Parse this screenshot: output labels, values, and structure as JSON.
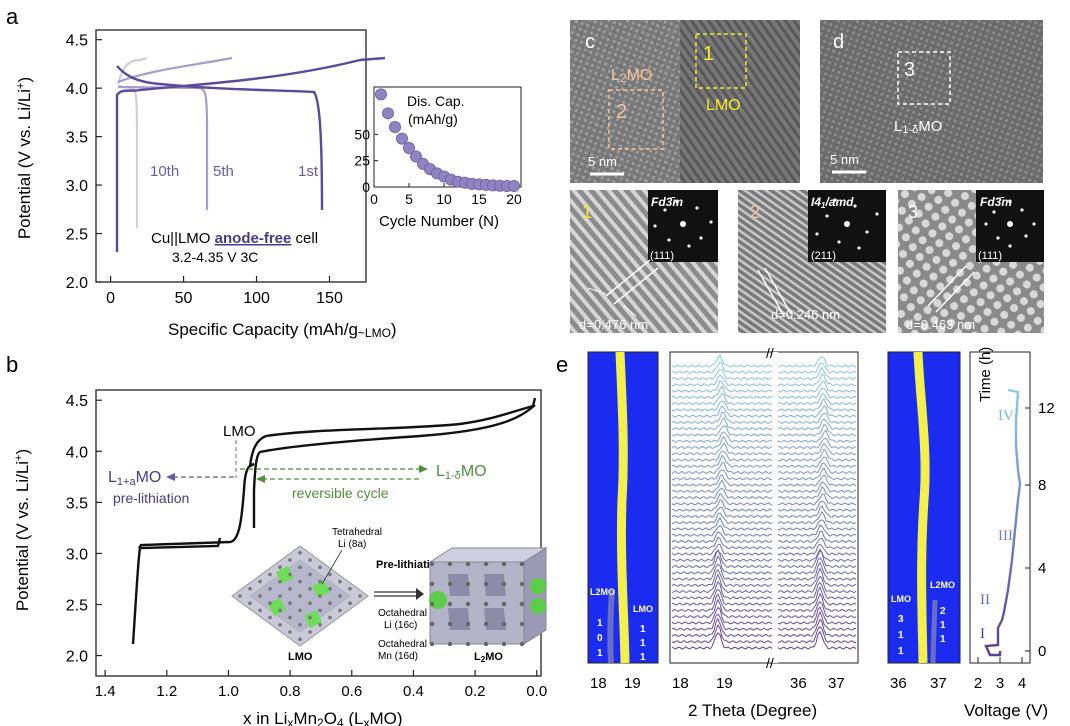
{
  "panel_labels": {
    "a": "a",
    "b": "b",
    "c": "c",
    "d": "d",
    "e": "e"
  },
  "chart_data": [
    {
      "id": "a",
      "type": "line",
      "xlabel_main": "Specific Capacity (mAh/g",
      "xlabel_sub": "~LMO",
      "xlabel_end": ")",
      "ylabel": "Potential (V vs. Li/Li",
      "ylabel_sup": "+",
      "ylabel_end": ")",
      "xlim": [
        -10,
        175
      ],
      "ylim": [
        2.0,
        4.6
      ],
      "xticks": [
        "0",
        "50",
        "100",
        "150"
      ],
      "yticks": [
        "2.0",
        "2.5",
        "3.0",
        "3.5",
        "4.0",
        "4.5"
      ],
      "curve_labels": [
        "10th",
        "5th",
        "1st"
      ],
      "annotation_cell": "Cu||LMO",
      "annotation_bold": "anode-free",
      "annotation_tail": "cell",
      "annotation_line2": "3.2-4.35 V   3C",
      "inset": {
        "type": "scatter",
        "title_line1": "Dis. Cap.",
        "title_line2": "(mAh/g)",
        "xlabel": "Cycle Number (N)",
        "xlim": [
          0,
          21
        ],
        "ylim": [
          0,
          95
        ],
        "xticks": [
          "0",
          "5",
          "10",
          "15",
          "20"
        ],
        "yticks": [
          "0",
          "25",
          "50"
        ],
        "x": [
          1,
          2,
          3,
          4,
          5,
          6,
          7,
          8,
          9,
          10,
          11,
          12,
          13,
          14,
          15,
          16,
          17,
          18,
          19,
          20
        ],
        "y": [
          88,
          70,
          57,
          46,
          37,
          29,
          22,
          17,
          13,
          10,
          7,
          5,
          4,
          3,
          2.5,
          2,
          1.5,
          1.2,
          1,
          1
        ]
      }
    },
    {
      "id": "b",
      "type": "line",
      "xlabel_main": "x in Li",
      "xlabel_formula": "xMn2O4 (LxMO)",
      "ylabel": "Potential (V vs. Li/Li",
      "ylabel_sup": "+",
      "ylabel_end": ")",
      "xlim": [
        1.4,
        0.0
      ],
      "ylim": [
        1.8,
        4.6
      ],
      "xticks": [
        "1.4",
        "1.2",
        "1.0",
        "0.8",
        "0.6",
        "0.4",
        "0.2",
        "0.0"
      ],
      "yticks": [
        "2.0",
        "2.5",
        "3.0",
        "3.5",
        "4.0",
        "4.5"
      ],
      "lmo_label": "LMO",
      "left_label_main": "L",
      "left_label_sub": "1+a",
      "left_label_tail": "MO",
      "left_caption": "pre-lithiation",
      "right_label_main": "L",
      "right_label_sub": "1-δ",
      "right_label_tail": "MO",
      "right_caption": "reversible cycle",
      "structure": {
        "tetra": "Tetrahedral",
        "tetra_site": "Li (8a)",
        "octa_li": "Octahedral",
        "octa_li_site": "Li (16c)",
        "octa_mn": "Octahedral",
        "octa_mn_site": "Mn (16d)",
        "arrow_label": "Pre-lithiation",
        "left_name": "LMO",
        "right_name": "L2MO"
      }
    },
    {
      "id": "e",
      "type": "heatmap",
      "xlabel": "2 Theta (Degree)",
      "left_ticks": [
        "18",
        "19"
      ],
      "mid_ticks_left": [
        "18",
        "19"
      ],
      "mid_ticks_right": [
        "36",
        "37"
      ],
      "right_ticks": [
        "36",
        "37"
      ],
      "left_peak_labels": {
        "l2mo": "L2MO",
        "l2mo_idx": [
          "1",
          "0",
          "1"
        ],
        "lmo": "LMO",
        "lmo_idx": [
          "1",
          "1",
          "1"
        ]
      },
      "right_peak_labels": {
        "lmo": "LMO",
        "lmo_idx": [
          "3",
          "1",
          "1"
        ],
        "l2mo": "L2MO",
        "l2mo_idx": [
          "2",
          "1",
          "1"
        ]
      },
      "voltage": {
        "xlabel": "Voltage (V)",
        "ylabel": "Time (h)",
        "xticks": [
          "2",
          "3",
          "4"
        ],
        "yticks": [
          "0",
          "4",
          "8",
          "12"
        ],
        "stages": [
          "I",
          "II",
          "III",
          "IV"
        ]
      }
    }
  ],
  "tem": {
    "c": {
      "l2mo": "L2MO",
      "box1": "1",
      "box2": "2",
      "lmo": "LMO",
      "scale": "5 nm"
    },
    "d": {
      "box3": "3",
      "phase": "L1-δMO",
      "scale": "5 nm"
    },
    "sub1": {
      "num": "1",
      "group": "Fd3̄m",
      "hkl": "(111)",
      "d": "d=0.476 nm"
    },
    "sub2": {
      "num": "2",
      "group": "I41/amd",
      "hkl": "(211)",
      "d": "d=0.246 nm"
    },
    "sub3": {
      "num": "3",
      "group": "Fd3̄m",
      "hkl": "(111)",
      "d": "d=0.463 nm"
    }
  },
  "colors": {
    "c1": "#5b4a9c",
    "c5": "#a79ccc",
    "c10": "#cfcfdf",
    "green": "#4f8f3a",
    "blue_bg": "#1b2cf0",
    "yellow": "#f3f04a"
  }
}
